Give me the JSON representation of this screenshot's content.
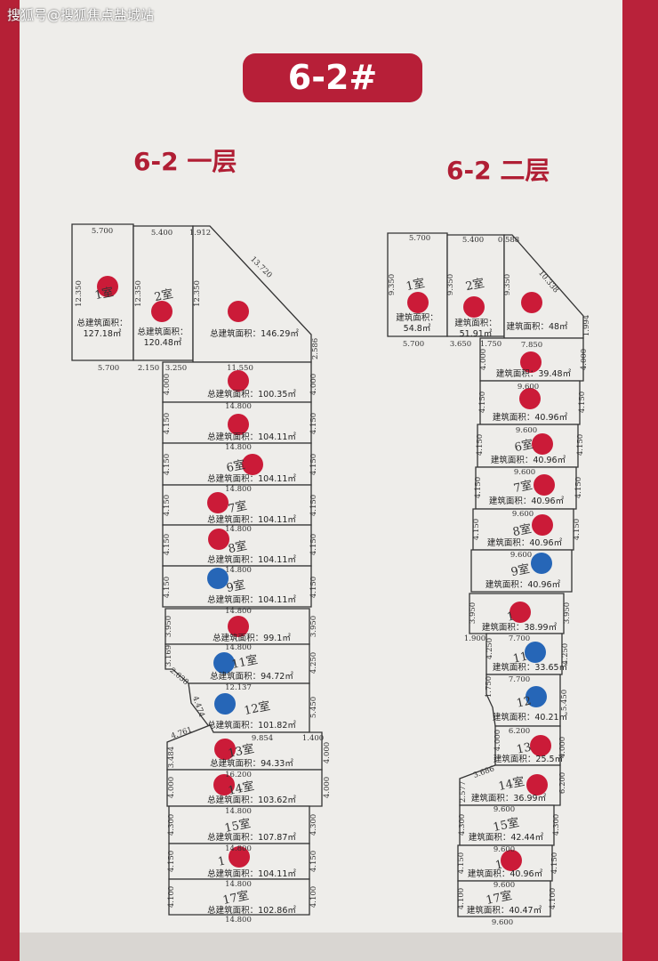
{
  "watermark": "搜狐号@搜狐焦点盐城站",
  "building_label": "6-2#",
  "colors": {
    "sold": "#c8102e",
    "reserved": "#1a5fb4",
    "accent": "#b71f38"
  },
  "floors": [
    {
      "title": "6-2 一层",
      "area_prefix": "总建筑面积：",
      "rooms": [
        {
          "label": "1室",
          "area": "127.18㎡",
          "dot": "sold"
        },
        {
          "label": "2室",
          "area": "120.48㎡",
          "dot": "sold"
        },
        {
          "label": "",
          "area": "146.29㎡",
          "dot": "sold"
        },
        {
          "label": "",
          "area": "100.35㎡",
          "dot": "sold"
        },
        {
          "label": "",
          "area": "104.11㎡",
          "dot": "sold"
        },
        {
          "label": "6室",
          "area": "104.11㎡",
          "dot": "sold"
        },
        {
          "label": "7室",
          "area": "104.11㎡",
          "dot": "sold"
        },
        {
          "label": "8室",
          "area": "104.11㎡",
          "dot": "sold"
        },
        {
          "label": "9室",
          "area": "104.11㎡",
          "dot": "reserved"
        },
        {
          "label": "",
          "area": "99.1㎡",
          "dot": "sold"
        },
        {
          "label": "11室",
          "area": "94.72㎡",
          "dot": "reserved"
        },
        {
          "label": "12室",
          "area": "101.82㎡",
          "dot": "reserved"
        },
        {
          "label": "13室",
          "area": "94.33㎡",
          "dot": "sold"
        },
        {
          "label": "14室",
          "area": "103.62㎡",
          "dot": "sold"
        },
        {
          "label": "15室",
          "area": "107.87㎡",
          "dot": ""
        },
        {
          "label": "1",
          "area": "104.11㎡",
          "dot": "sold"
        },
        {
          "label": "17室",
          "area": "102.86㎡",
          "dot": ""
        }
      ],
      "dimensions": [
        "5.700",
        "5.400",
        "1.912",
        "12.350",
        "12.350",
        "12.350",
        "13.720",
        "2.586",
        "5.700",
        "2.150",
        "3.250",
        "11.550",
        "4.000",
        "4.000",
        "14.800",
        "4.150",
        "4.150",
        "14.800",
        "4.150",
        "4.150",
        "14.800",
        "4.150",
        "4.150",
        "14.800",
        "4.150",
        "4.150",
        "14.800",
        "4.150",
        "4.150",
        "14.800",
        "3.950",
        "3.950",
        "14.800",
        "3.169",
        "4.250",
        "2.038",
        "12.137",
        "4.474",
        "5.450",
        "4.761",
        "9.854",
        "1.400",
        "3.484",
        "4.000",
        "16.200",
        "4.000",
        "4.000",
        "14.800",
        "4.300",
        "4.300",
        "14.800",
        "4.150",
        "4.150",
        "14.800",
        "4.100",
        "4.100",
        "14.800"
      ]
    },
    {
      "title": "6-2 二层",
      "area_prefix": "建筑面积：",
      "rooms": [
        {
          "label": "1室",
          "area": "54.8㎡",
          "dot": "sold"
        },
        {
          "label": "2室",
          "area": "51.91㎡",
          "dot": "sold"
        },
        {
          "label": "",
          "area": "48㎡",
          "dot": "sold"
        },
        {
          "label": "",
          "area": "39.48㎡",
          "dot": "sold"
        },
        {
          "label": "",
          "area": "40.96㎡",
          "dot": "sold"
        },
        {
          "label": "6室",
          "area": "40.96㎡",
          "dot": "sold"
        },
        {
          "label": "7室",
          "area": "40.96㎡",
          "dot": "sold"
        },
        {
          "label": "8室",
          "area": "40.96㎡",
          "dot": "sold"
        },
        {
          "label": "9室",
          "area": "40.96㎡",
          "dot": "reserved"
        },
        {
          "label": "1",
          "area": "38.99㎡",
          "dot": "sold"
        },
        {
          "label": "11",
          "area": "33.65㎡",
          "dot": "reserved"
        },
        {
          "label": "12",
          "area": "40.21㎡",
          "dot": "reserved"
        },
        {
          "label": "13",
          "area": "25.5㎡",
          "dot": "sold"
        },
        {
          "label": "14室",
          "area": "36.99㎡",
          "dot": "sold"
        },
        {
          "label": "15室",
          "area": "42.44㎡",
          "dot": ""
        },
        {
          "label": "1",
          "area": "40.96㎡",
          "dot": "sold"
        },
        {
          "label": "17室",
          "area": "40.47㎡",
          "dot": ""
        }
      ],
      "dimensions": [
        "5.700",
        "5.400",
        "0.588",
        "9.350",
        "9.350",
        "9.350",
        "10.338",
        "1.994",
        "5.700",
        "3.650",
        "1.750",
        "7.850",
        "4.000",
        "4.000",
        "9.600",
        "4.150",
        "4.150",
        "9.600",
        "4.150",
        "4.150",
        "9.600",
        "4.150",
        "4.150",
        "9.600",
        "4.150",
        "4.150",
        "9.600",
        "3.950",
        "3.950",
        "1.900",
        "7.700",
        "4.250",
        "4.250",
        "7.700",
        "1.750",
        "5.450",
        "6.200",
        "4.000",
        "6.200",
        "3.686",
        "2.577",
        "4.000",
        "9.600",
        "4.300",
        "4.300",
        "9.600",
        "4.150",
        "4.150",
        "9.600",
        "4.100",
        "4.100",
        "9.600"
      ]
    }
  ]
}
